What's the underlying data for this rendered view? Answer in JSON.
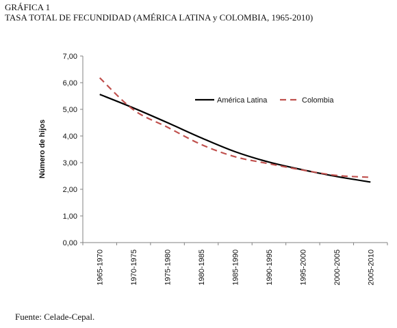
{
  "figure": {
    "number": "GRÁFICA 1",
    "title": "TASA TOTAL DE FECUNDIDAD (AMÉRICA LATINA y COLOMBIA, 1965-2010)",
    "source": "Fuente: Celade-Cepal."
  },
  "chart_data": {
    "type": "line",
    "categories": [
      "1965-1970",
      "1970-1975",
      "1975-1980",
      "1980-1985",
      "1985-1990",
      "1990-1995",
      "1995-2000",
      "2000-2005",
      "2005-2010"
    ],
    "series": [
      {
        "name": "América Latina",
        "color": "#000000",
        "style": "solid",
        "values": [
          5.56,
          5.05,
          4.5,
          3.93,
          3.41,
          3.02,
          2.73,
          2.48,
          2.27
        ]
      },
      {
        "name": "Colombia",
        "color": "#c0504d",
        "style": "dashed",
        "values": [
          6.18,
          4.98,
          4.33,
          3.68,
          3.22,
          2.96,
          2.72,
          2.52,
          2.45
        ]
      }
    ],
    "ylabel": "Número de hijos",
    "ylim": [
      0,
      7
    ],
    "yticks": [
      "0,00",
      "1,00",
      "2,00",
      "3,00",
      "4,00",
      "5,00",
      "6,00",
      "7,00"
    ],
    "grid": false,
    "legend": "top-right"
  }
}
